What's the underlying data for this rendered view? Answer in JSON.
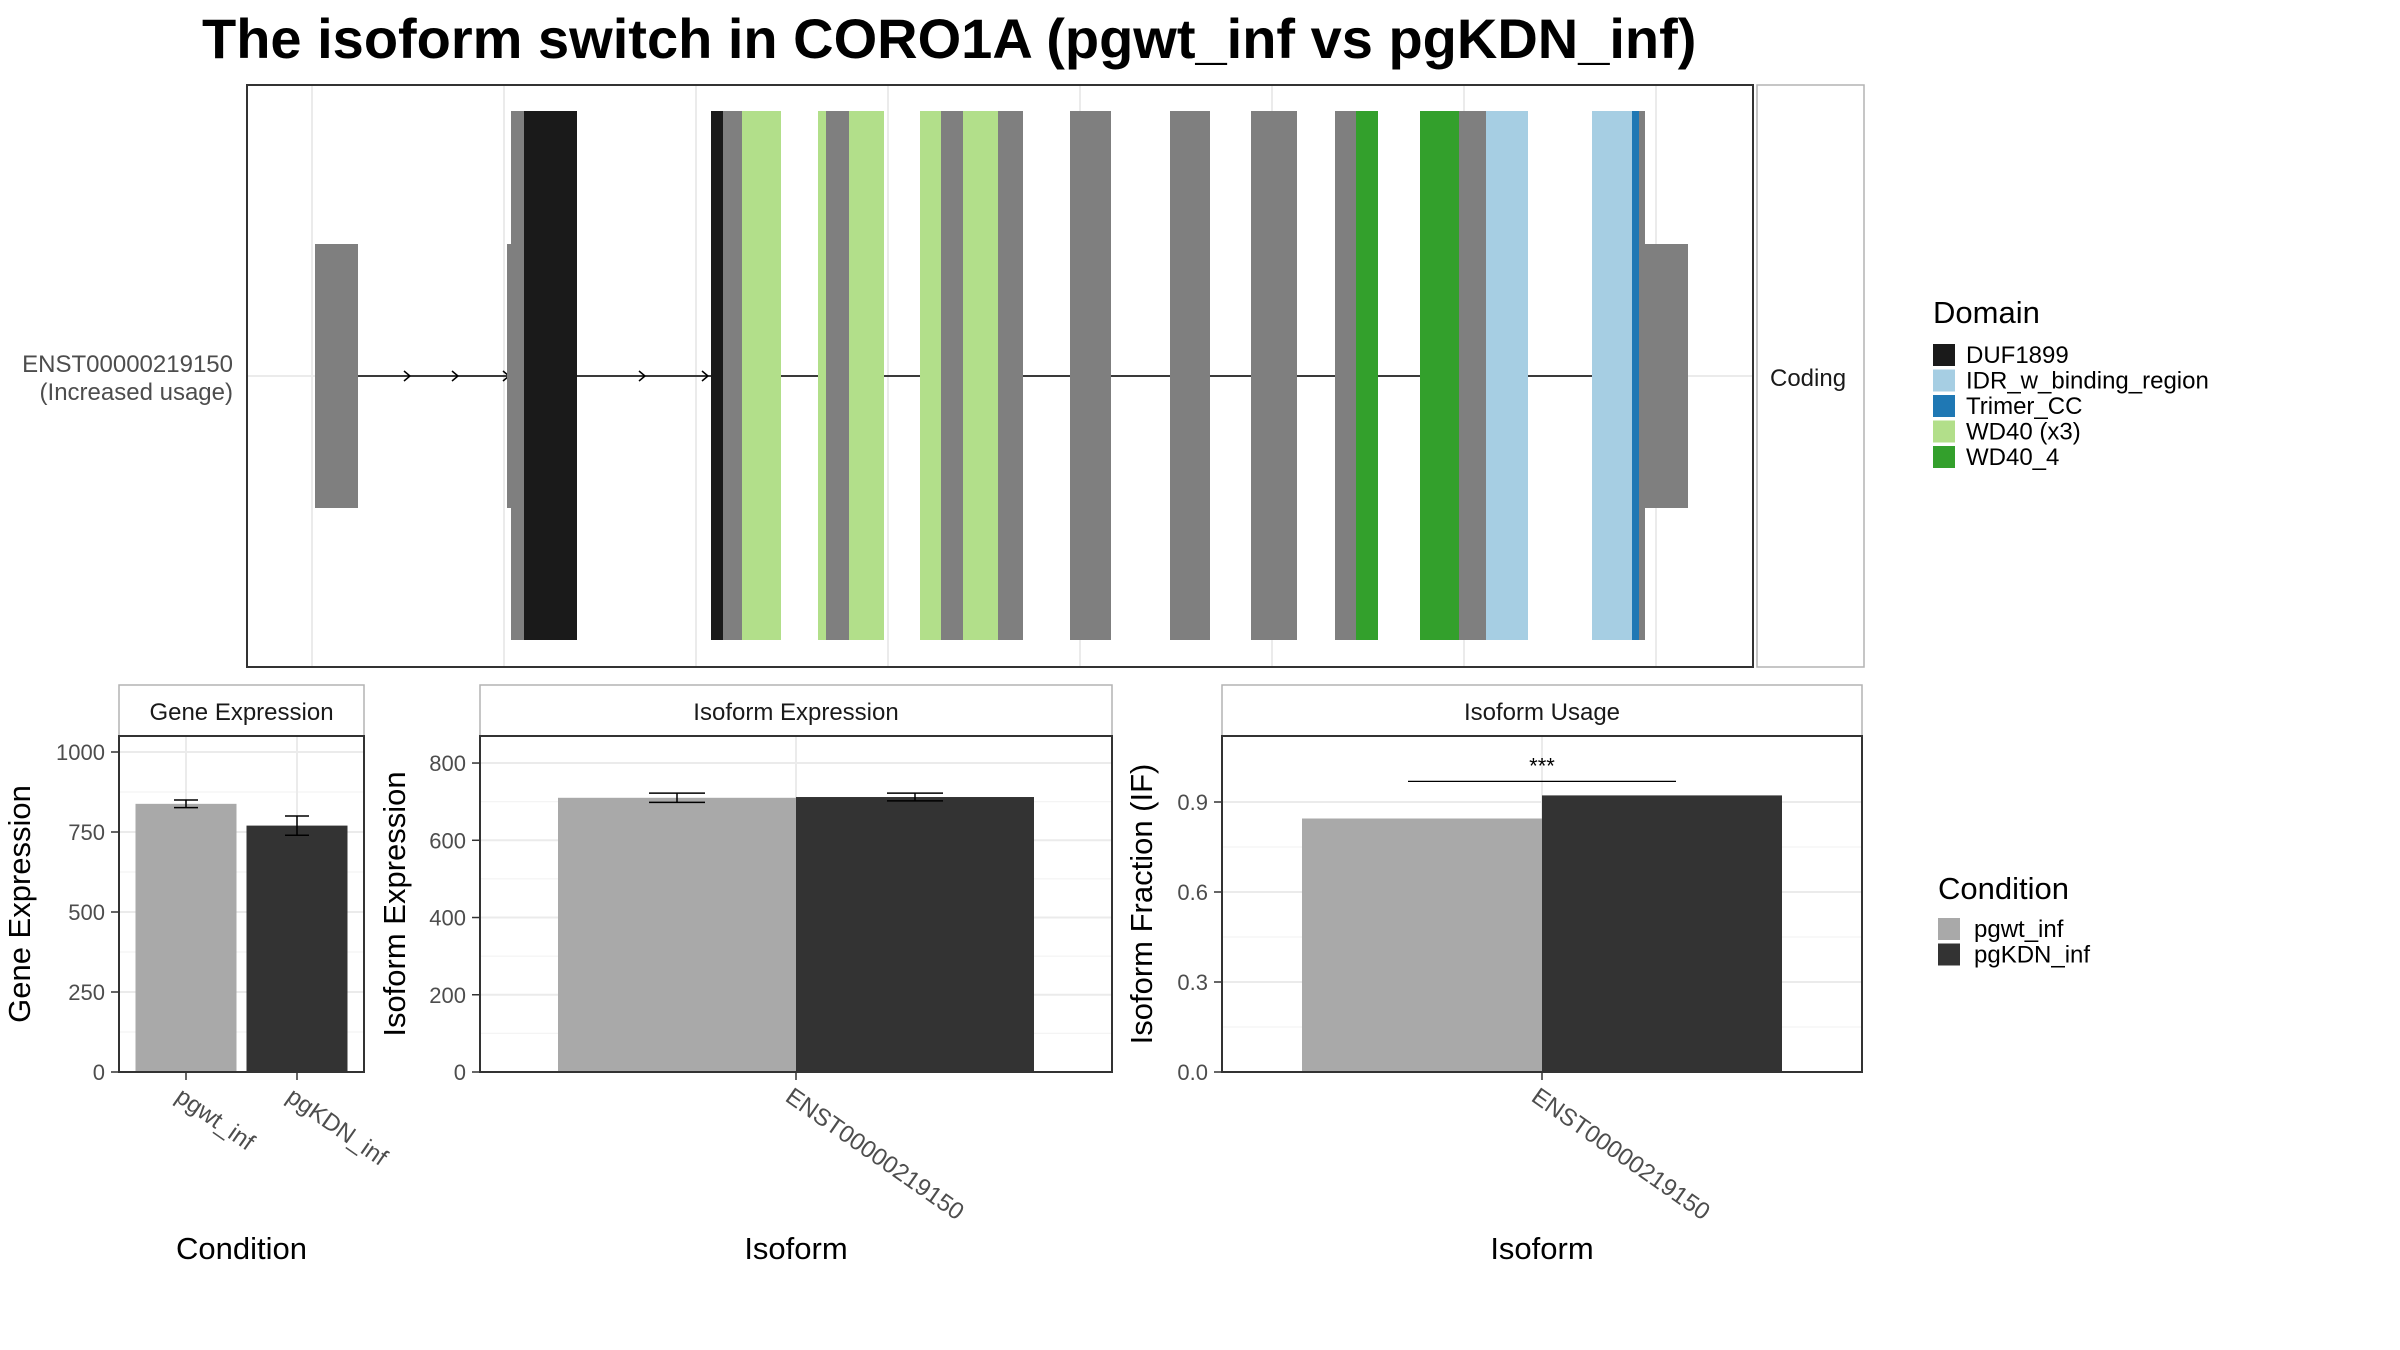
{
  "title": "The isoform switch in CORO1A (pgwt_inf vs pgKDN_inf)",
  "colors": {
    "pgwt_inf": "#a9a9a9",
    "pgKDN_inf": "#333333",
    "exon": "#7f7f7f",
    "DUF1899": "#1a1a1a",
    "IDR_w_binding_region": "#a6cee3",
    "Trimer_CC": "#1f78b4",
    "WD40 (x3)": "#b2df8a",
    "WD40_4": "#33a02c"
  },
  "isoform_structure": {
    "transcript_label": "ENST00000219150",
    "transcript_note": "(Increased usage)",
    "strip_label": "Coding"
  },
  "domain_legend": {
    "title": "Domain",
    "entries": [
      "DUF1899",
      "IDR_w_binding_region",
      "Trimer_CC",
      "WD40 (x3)",
      "WD40_4"
    ]
  },
  "condition_legend": {
    "title": "Condition",
    "entries": [
      "pgwt_inf",
      "pgKDN_inf"
    ]
  },
  "chart_data": [
    {
      "type": "bar",
      "title": "Gene Expression",
      "xlabel": "Condition",
      "ylabel": "Gene Expression",
      "categories": [
        "pgwt_inf",
        "pgKDN_inf"
      ],
      "values": [
        838,
        770
      ],
      "errors": [
        [
          826,
          850
        ],
        [
          740,
          800
        ]
      ],
      "ylim": [
        0,
        1050
      ],
      "yticks": [
        0,
        250,
        500,
        750,
        1000
      ]
    },
    {
      "type": "bar",
      "title": "Isoform Expression",
      "xlabel": "Isoform",
      "ylabel": "Isoform Expression",
      "categories": [
        "ENST00000219150"
      ],
      "series": [
        {
          "name": "pgwt_inf",
          "values": [
            710
          ],
          "errors": [
            [
              698,
              722
            ]
          ]
        },
        {
          "name": "pgKDN_inf",
          "values": [
            712
          ],
          "errors": [
            [
              702,
              722
            ]
          ]
        }
      ],
      "ylim": [
        0,
        870
      ],
      "yticks": [
        0,
        200,
        400,
        600,
        800
      ]
    },
    {
      "type": "bar",
      "title": "Isoform Usage",
      "xlabel": "Isoform",
      "ylabel": "Isoform Fraction (IF)",
      "categories": [
        "ENST00000219150"
      ],
      "series": [
        {
          "name": "pgwt_inf",
          "values": [
            0.845
          ]
        },
        {
          "name": "pgKDN_inf",
          "values": [
            0.922
          ]
        }
      ],
      "significance": "***",
      "ylim": [
        0,
        1.12
      ],
      "yticks": [
        0.0,
        0.3,
        0.6,
        0.9
      ]
    }
  ]
}
